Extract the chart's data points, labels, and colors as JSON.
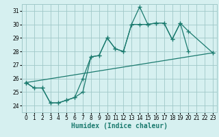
{
  "background_color": "#d6f0f0",
  "grid_color": "#a0c8c8",
  "line_color": "#1a7a6e",
  "series": [
    {
      "x": [
        0,
        1,
        2,
        3,
        4,
        5,
        6,
        7,
        8,
        9,
        10,
        11,
        12,
        13,
        14,
        15,
        16,
        17,
        18,
        19,
        20
      ],
      "y": [
        25.7,
        25.3,
        25.3,
        24.2,
        24.2,
        24.4,
        24.6,
        26.0,
        27.6,
        27.7,
        29.0,
        28.2,
        28.0,
        30.0,
        31.3,
        30.0,
        30.1,
        30.1,
        28.9,
        30.1,
        28.0
      ]
    },
    {
      "x": [
        0,
        1,
        2,
        3,
        4,
        5,
        6,
        7,
        8,
        9,
        10,
        11,
        12,
        13,
        14,
        15,
        16,
        17,
        18,
        19,
        20,
        23
      ],
      "y": [
        25.7,
        25.3,
        25.3,
        24.2,
        24.2,
        24.4,
        24.6,
        25.0,
        27.6,
        27.7,
        29.0,
        28.2,
        28.0,
        30.0,
        30.0,
        30.0,
        30.1,
        30.1,
        28.9,
        30.1,
        29.5,
        27.9
      ]
    },
    {
      "x": [
        0,
        23
      ],
      "y": [
        25.7,
        27.9
      ]
    }
  ],
  "xlabel": "Humidex (Indice chaleur)",
  "xlim": [
    -0.5,
    23.5
  ],
  "ylim": [
    23.5,
    31.5
  ],
  "xticks": [
    0,
    1,
    2,
    3,
    4,
    5,
    6,
    7,
    8,
    9,
    10,
    11,
    12,
    13,
    14,
    15,
    16,
    17,
    18,
    19,
    20,
    21,
    22,
    23
  ],
  "yticks": [
    24,
    25,
    26,
    27,
    28,
    29,
    30,
    31
  ],
  "tick_fontsize": 5.5,
  "label_fontsize": 7.0,
  "marker": "+",
  "markersize": 4,
  "linewidth": 0.9
}
